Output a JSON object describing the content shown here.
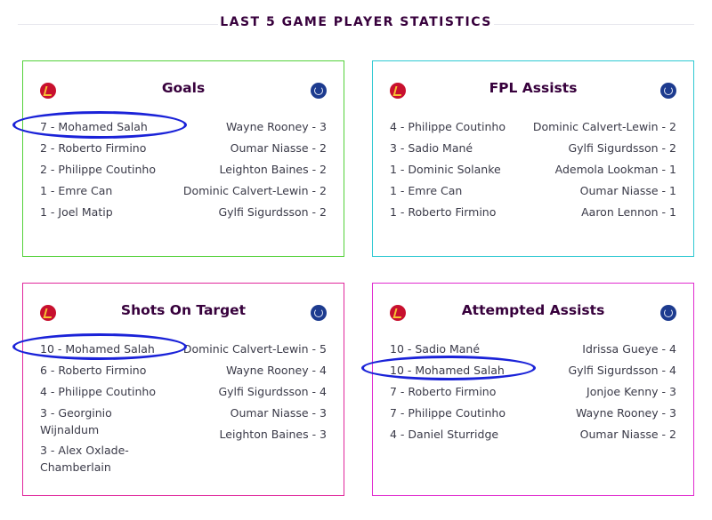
{
  "page": {
    "title": "LAST 5 GAME PLAYER STATISTICS"
  },
  "colors": {
    "goals_border": "#53d13a",
    "fpl_assists_border": "#2fc9d2",
    "shots_border": "#e0279c",
    "attempted_border": "#e02bcf",
    "title_color": "#37003c",
    "highlight_ring": "#1a22d8"
  },
  "icons": {
    "left_crest": "liverpool-crest-icon",
    "right_crest": "everton-crest-icon"
  },
  "cards": [
    {
      "title": "Goals",
      "left": [
        {
          "text": "7 - Mohamed Salah"
        },
        {
          "text": "2 - Roberto Firmino"
        },
        {
          "text": "2 - Philippe Coutinho"
        },
        {
          "text": "1 - Emre Can"
        },
        {
          "text": "1 - Joel Matip"
        }
      ],
      "right": [
        {
          "text": "Wayne Rooney - 3"
        },
        {
          "text": "Oumar Niasse - 2"
        },
        {
          "text": "Leighton Baines - 2"
        },
        {
          "text": "Dominic Calvert-Lewin - 2"
        },
        {
          "text": "Gylfi Sigurdsson - 2"
        }
      ]
    },
    {
      "title": "FPL Assists",
      "left": [
        {
          "text": "4 - Philippe Coutinho"
        },
        {
          "text": "3 - Sadio Mané"
        },
        {
          "text": "1 - Dominic Solanke"
        },
        {
          "text": "1 - Emre Can"
        },
        {
          "text": "1 - Roberto Firmino"
        }
      ],
      "right": [
        {
          "text": "Dominic Calvert-Lewin - 2"
        },
        {
          "text": "Gylfi Sigurdsson - 2"
        },
        {
          "text": "Ademola Lookman - 1"
        },
        {
          "text": "Oumar Niasse - 1"
        },
        {
          "text": "Aaron Lennon - 1"
        }
      ]
    },
    {
      "title": "Shots On Target",
      "left": [
        {
          "text": "10 - Mohamed Salah"
        },
        {
          "text": "6 - Roberto Firmino"
        },
        {
          "text": "4 - Philippe Coutinho"
        },
        {
          "text": "3 - Georginio Wijnaldum"
        },
        {
          "text": "3 - Alex Oxlade-Chamberlain"
        }
      ],
      "right": [
        {
          "text": "Dominic Calvert-Lewin - 5"
        },
        {
          "text": "Wayne Rooney - 4"
        },
        {
          "text": "Gylfi Sigurdsson - 4"
        },
        {
          "text": "Oumar Niasse - 3"
        },
        {
          "text": "Leighton Baines - 3"
        }
      ]
    },
    {
      "title": "Attempted Assists",
      "left": [
        {
          "text": "10 - Sadio Mané"
        },
        {
          "text": "10 - Mohamed Salah"
        },
        {
          "text": "7 - Roberto Firmino"
        },
        {
          "text": "7 - Philippe Coutinho"
        },
        {
          "text": "4 - Daniel Sturridge"
        }
      ],
      "right": [
        {
          "text": "Idrissa Gueye - 4"
        },
        {
          "text": "Gylfi Sigurdsson - 4"
        },
        {
          "text": "Jonjoe Kenny - 3"
        },
        {
          "text": "Wayne Rooney - 3"
        },
        {
          "text": "Oumar Niasse - 2"
        }
      ]
    }
  ]
}
